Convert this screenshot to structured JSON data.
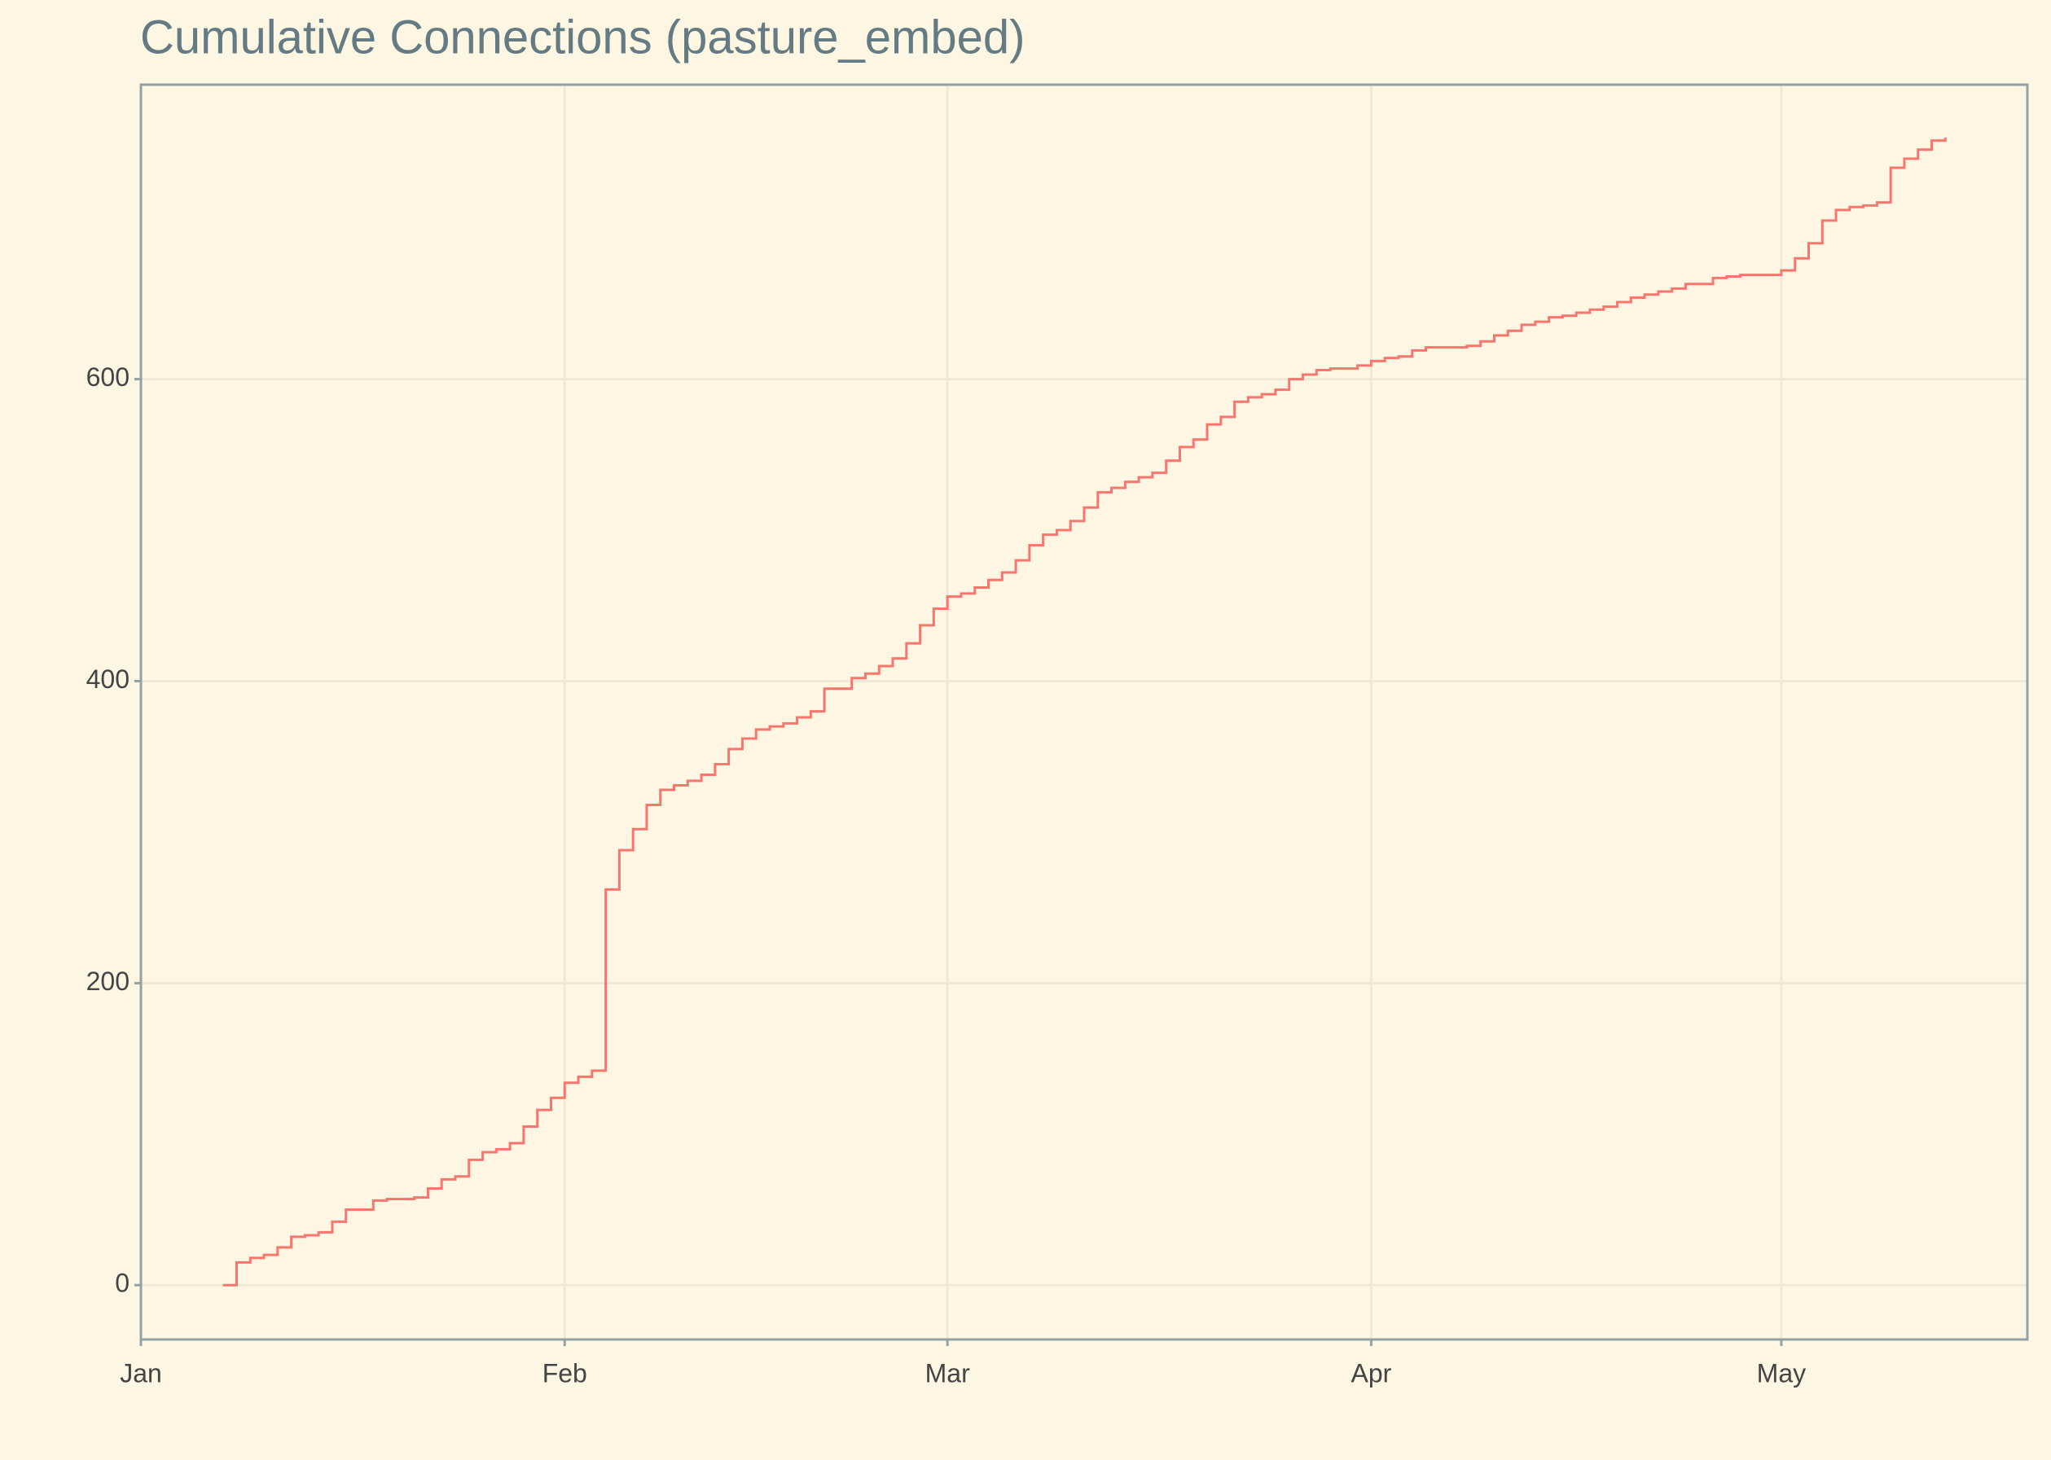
{
  "chart_data": {
    "type": "step",
    "title": "Cumulative Connections (pasture_embed)",
    "x": [
      6,
      7,
      8,
      9,
      10,
      11,
      12,
      13,
      14,
      15,
      16,
      17,
      18,
      19,
      20,
      21,
      22,
      23,
      24,
      25,
      26,
      27,
      28,
      29,
      30,
      31,
      32,
      33,
      34,
      35,
      36,
      37,
      38,
      39,
      40,
      41,
      42,
      43,
      44,
      45,
      46,
      47,
      48,
      49,
      50,
      51,
      52,
      53,
      54,
      55,
      56,
      57,
      58,
      59,
      60,
      61,
      62,
      63,
      64,
      65,
      66,
      67,
      68,
      69,
      70,
      71,
      72,
      73,
      74,
      75,
      76,
      77,
      78,
      79,
      80,
      81,
      82,
      83,
      84,
      85,
      86,
      87,
      88,
      89,
      90,
      91,
      92,
      93,
      94,
      95,
      96,
      97,
      98,
      99,
      100,
      101,
      102,
      103,
      104,
      105,
      106,
      107,
      108,
      109,
      110,
      111,
      112,
      113,
      114,
      115,
      116,
      117,
      118,
      119,
      120,
      121,
      122,
      123,
      124,
      125,
      126,
      127,
      128,
      129,
      130,
      131,
      132
    ],
    "series": [
      {
        "color": "#f8766d",
        "values": [
          0,
          15,
          18,
          20,
          25,
          32,
          33,
          35,
          42,
          50,
          50,
          56,
          57,
          57,
          58,
          64,
          70,
          72,
          83,
          88,
          90,
          94,
          105,
          116,
          124,
          134,
          138,
          142,
          262,
          288,
          302,
          318,
          328,
          331,
          334,
          338,
          345,
          355,
          362,
          368,
          370,
          372,
          376,
          380,
          395,
          395,
          402,
          405,
          410,
          415,
          425,
          437,
          448,
          456,
          458,
          462,
          467,
          472,
          480,
          490,
          497,
          500,
          506,
          515,
          525,
          528,
          532,
          535,
          538,
          546,
          555,
          560,
          570,
          575,
          585,
          588,
          590,
          593,
          600,
          603,
          606,
          607,
          607,
          609,
          612,
          614,
          615,
          619,
          621,
          621,
          621,
          622,
          625,
          629,
          632,
          636,
          638,
          641,
          642,
          644,
          646,
          648,
          651,
          654,
          656,
          658,
          660,
          663,
          663,
          667,
          668,
          669,
          669,
          669,
          672,
          680,
          690,
          705,
          712,
          714,
          715,
          717,
          740,
          746,
          752,
          758,
          760
        ]
      }
    ],
    "xlim": [
      0,
      138
    ],
    "xticks": [
      {
        "value": 0,
        "label": "Jan"
      },
      {
        "value": 31,
        "label": "Feb"
      },
      {
        "value": 59,
        "label": "Mar"
      },
      {
        "value": 90,
        "label": "Apr"
      },
      {
        "value": 120,
        "label": "May"
      }
    ],
    "ylim": [
      -36,
      795
    ],
    "yticks": [
      0,
      200,
      400,
      600
    ],
    "grid": true
  }
}
